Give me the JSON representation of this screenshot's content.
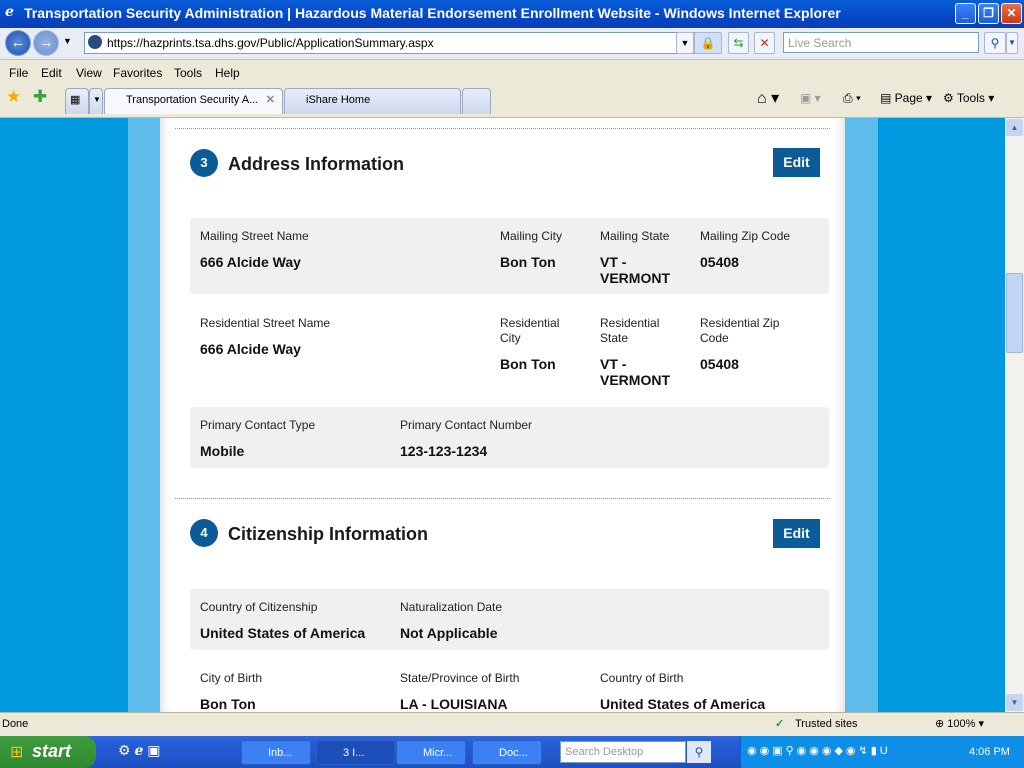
{
  "window": {
    "title": "Transportation Security Administration | Hazardous Material Endorsement Enrollment Website - Windows Internet Explorer"
  },
  "address_bar": {
    "url": "https://hazprints.tsa.dhs.gov/Public/ApplicationSummary.aspx",
    "search_placeholder": "Live Search"
  },
  "menu": [
    "File",
    "Edit",
    "View",
    "Favorites",
    "Tools",
    "Help"
  ],
  "tabs": [
    {
      "label": "Transportation Security A..."
    },
    {
      "label": "iShare Home"
    }
  ],
  "toolbar": {
    "page": "Page",
    "tools": "Tools"
  },
  "sections": [
    {
      "number": "3",
      "title": "Address Information",
      "edit": "Edit",
      "mailing": [
        {
          "label": "Mailing Street Name",
          "value": "666 Alcide Way"
        },
        {
          "label": "Mailing City",
          "value": "Bon Ton"
        },
        {
          "label": "Mailing State",
          "value": "VT - VERMONT"
        },
        {
          "label": "Mailing Zip Code",
          "value": "05408"
        }
      ],
      "residential": [
        {
          "label": "Residential Street Name",
          "value": "666 Alcide Way"
        },
        {
          "label": "Residential City",
          "value": "Bon Ton"
        },
        {
          "label": "Residential State",
          "value": "VT - VERMONT"
        },
        {
          "label": "Residential Zip Code",
          "value": "05408"
        }
      ],
      "contact": [
        {
          "label": "Primary Contact Type",
          "value": "Mobile"
        },
        {
          "label": "Primary Contact Number",
          "value": "123-123-1234"
        }
      ]
    },
    {
      "number": "4",
      "title": "Citizenship Information",
      "edit": "Edit",
      "citizenship": [
        {
          "label": "Country of Citizenship",
          "value": "United States of America"
        },
        {
          "label": "Naturalization Date",
          "value": "Not Applicable"
        }
      ],
      "birth": [
        {
          "label": "City of Birth",
          "value": "Bon Ton"
        },
        {
          "label": "State/Province of Birth",
          "value": "LA - LOUISIANA"
        },
        {
          "label": "Country of Birth",
          "value": "United States of America"
        }
      ]
    }
  ],
  "status": {
    "text": "Done",
    "zone": "Trusted sites",
    "zoom": "100%"
  },
  "taskbar": {
    "start": "start",
    "items": [
      "Inb...",
      "3 I...",
      "Micr...",
      "Doc..."
    ],
    "search_placeholder": "Search Desktop",
    "clock": "4:06 PM"
  }
}
